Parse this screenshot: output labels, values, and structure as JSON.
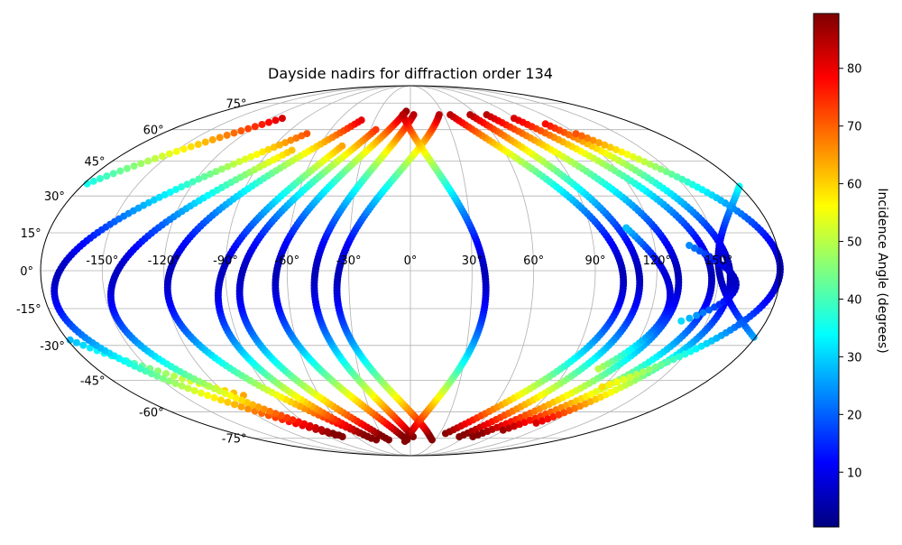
{
  "chart_data": {
    "type": "scatter",
    "projection": "mollweide",
    "title": "Dayside nadirs for diffraction order 134",
    "xlabel": "",
    "ylabel": "",
    "xlim": [
      -180,
      180
    ],
    "ylim": [
      -90,
      90
    ],
    "grid": true,
    "x_ticks": [
      -150,
      -120,
      -90,
      -60,
      -30,
      0,
      30,
      60,
      90,
      120,
      150
    ],
    "x_tick_labels": [
      "-150°",
      "-120°",
      "-90°",
      "-60°",
      "-30°",
      "0°",
      "30°",
      "60°",
      "90°",
      "120°",
      "150°"
    ],
    "y_ticks": [
      75,
      60,
      45,
      30,
      15,
      0,
      -15,
      -30,
      -45,
      -60,
      -75
    ],
    "y_tick_labels": [
      "75°",
      "60°",
      "45°",
      "30°",
      "15°",
      "0°",
      "-15°",
      "-30°",
      "-45°",
      "-60°",
      "-75°"
    ],
    "colorbar": {
      "label": "Incidence Angle (degrees)",
      "colormap": "jet",
      "range": [
        0.5,
        89.5
      ],
      "ticks": [
        10,
        20,
        30,
        40,
        50,
        60,
        70,
        80
      ],
      "tick_labels": [
        "10",
        "20",
        "30",
        "40",
        "50",
        "60",
        "70",
        "80"
      ]
    },
    "series": [
      {
        "c_lon": -160,
        "w": 100,
        "lat_top": 66,
        "lat_bot": -52,
        "side": "left"
      },
      {
        "c_lon": -125,
        "w": 100,
        "lat_top": 58,
        "lat_bot": -74,
        "side": "left"
      },
      {
        "c_lon": -112,
        "w": 72,
        "lat_top": 50,
        "lat_bot": -73,
        "side": "left"
      },
      {
        "c_lon": -80,
        "w": 78,
        "lat_top": 65,
        "lat_bot": -76,
        "side": "left"
      },
      {
        "c_lon": -70,
        "w": 50,
        "lat_top": 52,
        "lat_bot": -75,
        "side": "left"
      },
      {
        "c_lon": -55,
        "w": 58,
        "lat_top": 60,
        "lat_bot": -76,
        "side": "left"
      },
      {
        "c_lon": -35,
        "w": 62,
        "lat_top": 70,
        "lat_bot": -76,
        "side": "left"
      },
      {
        "c_lon": -22,
        "w": 50,
        "lat_top": 68,
        "lat_bot": -74,
        "side": "left"
      },
      {
        "c_lon": -5,
        "w": 62,
        "lat_top": 68,
        "lat_bot": -76,
        "side": "left"
      },
      {
        "c_lon": 15,
        "w": 44,
        "lat_top": 68,
        "lat_bot": -77,
        "side": "right"
      },
      {
        "c_lon": 70,
        "w": 68,
        "lat_top": 68,
        "lat_bot": -72,
        "side": "right"
      },
      {
        "c_lon": 83,
        "w": 58,
        "lat_top": 68,
        "lat_bot": -74,
        "side": "right"
      },
      {
        "c_lon": 100,
        "w": 62,
        "lat_top": 68,
        "lat_bot": -74,
        "side": "right"
      },
      {
        "c_lon": 118,
        "w": 58,
        "lat_top": 66,
        "lat_bot": -70,
        "side": "right"
      },
      {
        "c_lon": 132,
        "w": 48,
        "lat_top": 63,
        "lat_bot": -66,
        "side": "right"
      },
      {
        "c_lon": 150,
        "w": 60,
        "lat_top": 58,
        "lat_bot": -48,
        "side": "right"
      },
      {
        "c_lon": 148,
        "w": 22,
        "lat_top": 10,
        "lat_bot": -20,
        "side": "right"
      },
      {
        "c_lon": 118,
        "w": 20,
        "lat_top": 17,
        "lat_bot": -40,
        "side": "right"
      }
    ]
  }
}
